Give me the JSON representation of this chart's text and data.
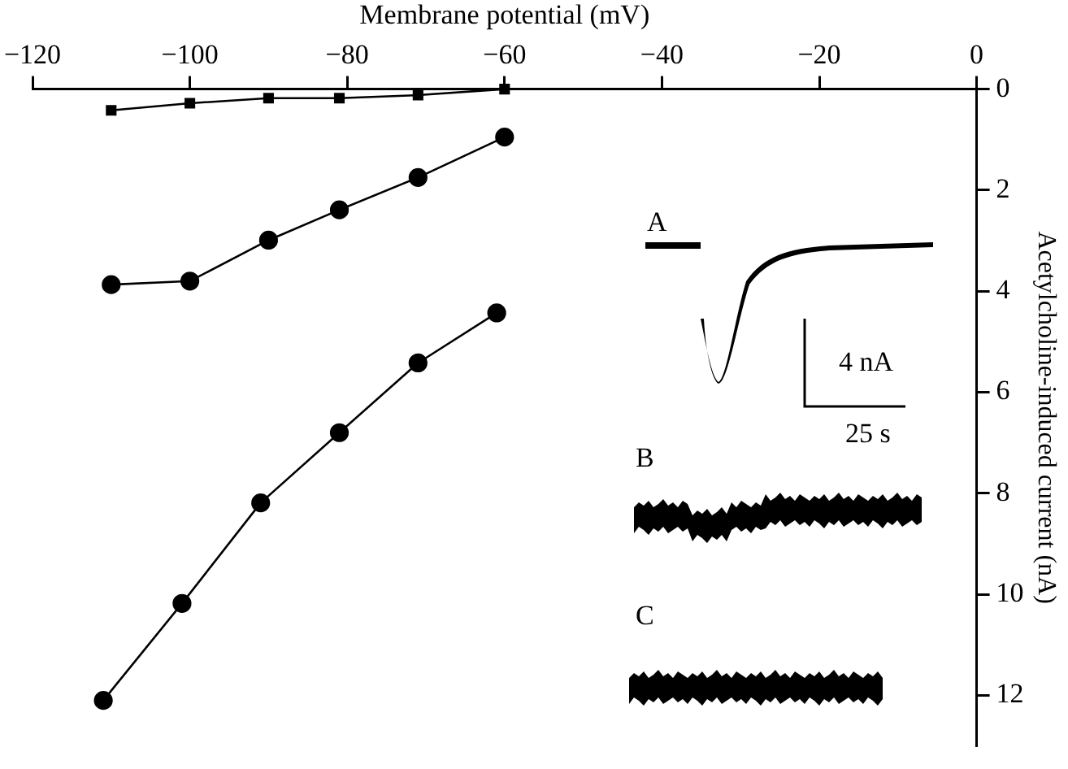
{
  "chart_data": {
    "type": "line",
    "xlabel": "Membrane potential (mV)",
    "ylabel": "Acetylcholine-induced current (nA)",
    "xlim": [
      -120,
      0
    ],
    "xticks": [
      -120,
      -100,
      -80,
      -60,
      -40,
      -20,
      0
    ],
    "ylim": [
      13,
      0
    ],
    "yticks": [
      0,
      2,
      4,
      6,
      8,
      10,
      12
    ],
    "series": [
      {
        "color": "#000000",
        "marker": "square",
        "x": [
          -110,
          -100,
          -90,
          -81,
          -71,
          -60
        ],
        "values": [
          0.42,
          0.28,
          0.18,
          0.18,
          0.12,
          0
        ]
      },
      {
        "color": "#000000",
        "marker": "circle",
        "x": [
          -110,
          -100,
          -90,
          -81,
          -71,
          -60
        ],
        "values": [
          3.87,
          3.8,
          2.99,
          2.39,
          1.75,
          0.95
        ]
      },
      {
        "color": "#000000",
        "marker": "circle",
        "x": [
          -111,
          -101,
          -91,
          -81,
          -71,
          -61
        ],
        "values": [
          12.1,
          10.18,
          8.19,
          6.8,
          5.42,
          4.43
        ]
      }
    ],
    "legend": false,
    "annotations": [
      "A",
      "4 nA",
      "25 s",
      "B",
      "C"
    ]
  }
}
